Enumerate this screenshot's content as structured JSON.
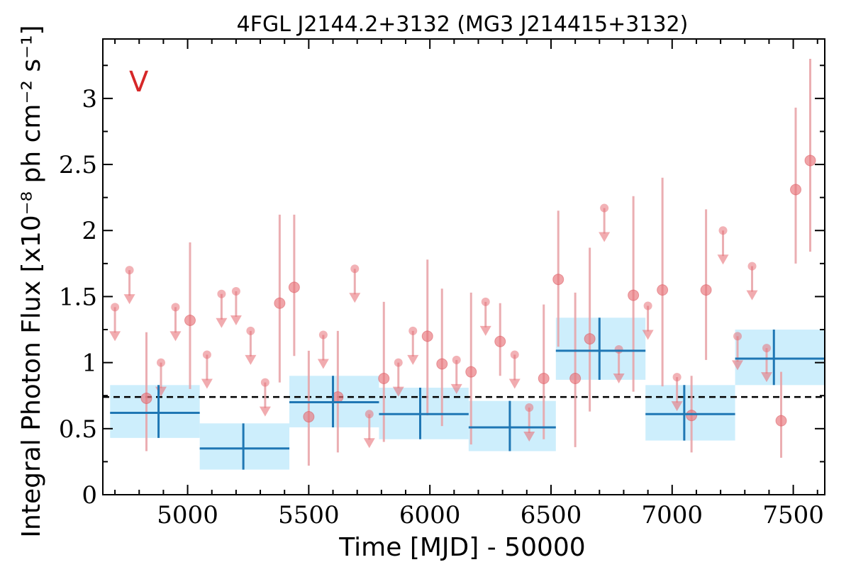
{
  "chart_data": {
    "type": "scatter",
    "title": "4FGL J2144.2+3132 (MG3 J214415+3132)",
    "xlabel": "Time [MJD] - 50000",
    "ylabel": "Integral Photon Flux [x10⁻⁸ ph cm⁻² s⁻¹]",
    "flag_label": "V",
    "xlim": [
      4650,
      7630
    ],
    "ylim": [
      0,
      3.45
    ],
    "xticks": [
      5000,
      5500,
      6000,
      6500,
      7000,
      7500
    ],
    "xtick_labels": [
      "5000",
      "5500",
      "6000",
      "6500",
      "7000",
      "7500"
    ],
    "yticks": [
      0,
      0.5,
      1,
      1.5,
      2,
      2.5,
      3
    ],
    "ytick_labels": [
      "0",
      "0.5",
      "1",
      "1.5",
      "2",
      "2.5",
      "3"
    ],
    "grid": false,
    "mean_flux": 0.74,
    "colors": {
      "points": "#e8737a",
      "errorbars": "#e8a0a4",
      "bins": "#1f77b4",
      "bin_fill": "#cdeefc",
      "mean_line": "#000000",
      "flag": "#d62728"
    },
    "series": [
      {
        "kind": "detections",
        "x": [
          4830,
          5010,
          5380,
          5440,
          5500,
          5620,
          5810,
          5990,
          6050,
          6170,
          6290,
          6470,
          6530,
          6600,
          6660,
          6840,
          6960,
          7080,
          7140,
          7450,
          7510,
          7570
        ],
        "y": [
          0.73,
          1.32,
          1.45,
          1.57,
          0.59,
          0.74,
          0.88,
          1.2,
          0.99,
          0.93,
          1.16,
          0.88,
          1.63,
          0.88,
          1.18,
          1.51,
          1.55,
          0.6,
          1.55,
          0.56,
          2.31,
          2.53
        ],
        "y_low": [
          0.33,
          0.8,
          0.85,
          1.05,
          0.22,
          0.32,
          0.4,
          0.6,
          0.52,
          0.38,
          0.9,
          0.42,
          1.12,
          0.36,
          0.63,
          0.78,
          0.82,
          0.32,
          1.02,
          0.28,
          1.75,
          1.84
        ],
        "y_high": [
          1.23,
          1.91,
          2.12,
          2.12,
          1.09,
          1.24,
          1.46,
          1.78,
          1.56,
          1.53,
          1.45,
          1.44,
          2.15,
          1.53,
          1.87,
          2.26,
          2.4,
          0.9,
          2.16,
          0.93,
          2.93,
          3.3
        ]
      },
      {
        "kind": "upper_limits",
        "x": [
          4700,
          4760,
          4890,
          4950,
          5080,
          5140,
          5200,
          5260,
          5320,
          5560,
          5690,
          5750,
          5870,
          5930,
          6110,
          6230,
          6350,
          6410,
          6720,
          6780,
          6900,
          7020,
          7210,
          7270,
          7330,
          7390
        ],
        "y": [
          1.42,
          1.7,
          1.0,
          1.42,
          1.06,
          1.52,
          1.54,
          1.24,
          0.85,
          1.21,
          1.71,
          0.61,
          1.0,
          1.24,
          1.02,
          1.46,
          1.06,
          0.66,
          2.17,
          1.1,
          1.43,
          0.89,
          2.0,
          1.2,
          1.73,
          1.11
        ]
      },
      {
        "kind": "bins",
        "x": [
          4880,
          5230,
          5600,
          5960,
          6330,
          6700,
          7050,
          7420
        ],
        "x_low": [
          4680,
          5050,
          5420,
          5790,
          6160,
          6520,
          6890,
          7260
        ],
        "x_high": [
          5050,
          5420,
          5790,
          6160,
          6520,
          6890,
          7260,
          7630
        ],
        "y": [
          0.62,
          0.35,
          0.7,
          0.61,
          0.51,
          1.09,
          0.61,
          1.03
        ],
        "y_low": [
          0.43,
          0.19,
          0.51,
          0.42,
          0.33,
          0.87,
          0.41,
          0.83
        ],
        "y_high": [
          0.83,
          0.54,
          0.9,
          0.81,
          0.71,
          1.34,
          0.83,
          1.25
        ]
      }
    ]
  }
}
